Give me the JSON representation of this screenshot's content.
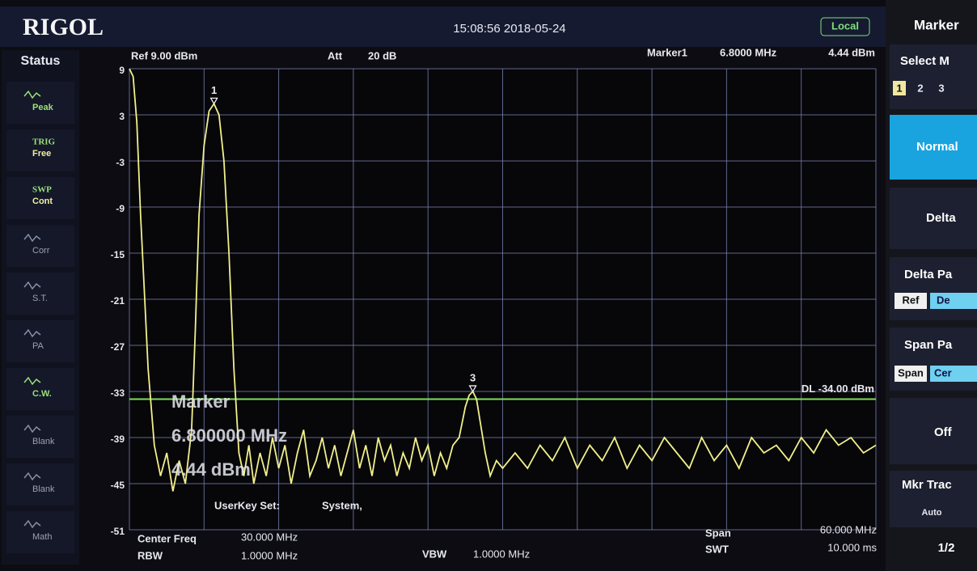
{
  "header": {
    "brand": "RIGOL",
    "datetime": "15:08:56 2018-05-24",
    "mode": "Local"
  },
  "status": {
    "title": "Status",
    "items": [
      {
        "top": "Peak"
      },
      {
        "top": "TRIG",
        "bottom": "Free"
      },
      {
        "top": "SWP",
        "bottom": "Cont"
      },
      {
        "top": "Corr"
      },
      {
        "top": "S.T."
      },
      {
        "top": "PA"
      },
      {
        "top": "C.W."
      },
      {
        "top": "Blank"
      },
      {
        "top": "Blank"
      },
      {
        "top": "Math"
      }
    ]
  },
  "top_info": {
    "ref": "Ref 9.00 dBm",
    "att_label": "Att",
    "att_value": "20 dB",
    "marker_label": "Marker1",
    "marker_freq": "6.8000 MHz",
    "marker_level": "4.44 dBm"
  },
  "overlay": {
    "title": "Marker",
    "freq": "6.800000 MHz",
    "level": "4.44 dBm",
    "userkey_label": "UserKey Set:",
    "userkey_value": "System,"
  },
  "bottom_info": {
    "center_label": "Center Freq",
    "center_value": "30.000 MHz",
    "rbw_label": "RBW",
    "rbw_value": "1.0000 MHz",
    "vbw_label": "VBW",
    "vbw_value": "1.0000 MHz",
    "span_label": "Span",
    "span_value": "60.000 MHz",
    "swt_label": "SWT",
    "swt_value": "10.000 ms"
  },
  "menu": {
    "title": "Marker",
    "select": "Select M",
    "numbers": [
      "1",
      "2",
      "3"
    ],
    "normal": "Normal",
    "delta": "Delta",
    "delta_pair": "Delta Pa",
    "delta_pair_opts": [
      "Ref",
      "De"
    ],
    "span_pair": "Span Pa",
    "span_pair_opts": [
      "Span",
      "Cer"
    ],
    "off": "Off",
    "trace": "Mkr Trac",
    "trace_value": "Auto",
    "page": "1/2"
  },
  "chart_data": {
    "type": "line",
    "x": [
      0,
      0.3,
      0.6,
      0.9,
      1.2,
      1.5,
      2,
      2.5,
      3,
      3.5,
      4,
      4.5,
      5,
      5.3,
      5.6,
      6,
      6.4,
      6.8,
      7.2,
      7.6,
      8,
      8.4,
      8.8,
      9.2,
      9.6,
      10,
      10.5,
      11,
      11.5,
      12,
      12.5,
      13,
      13.5,
      14,
      14.5,
      15,
      15.5,
      16,
      16.5,
      17,
      17.5,
      18,
      18.5,
      19,
      19.5,
      20,
      20.5,
      21,
      21.5,
      22,
      22.5,
      23,
      23.5,
      24,
      24.5,
      25,
      25.5,
      26,
      26.5,
      27,
      27.3,
      27.6,
      27.9,
      28.2,
      28.6,
      29,
      29.5,
      30,
      31,
      32,
      33,
      34,
      35,
      36,
      37,
      38,
      39,
      40,
      41,
      42,
      43,
      44,
      45,
      46,
      47,
      48,
      49,
      50,
      51,
      52,
      53,
      54,
      55,
      56,
      57,
      58,
      59,
      60
    ],
    "series": [
      {
        "color": "#f2f08a",
        "values": [
          9,
          8,
          2,
          -10,
          -20,
          -30,
          -40,
          -44,
          -41,
          -46,
          -42,
          -45,
          -38,
          -25,
          -10,
          -1,
          3.5,
          4.44,
          3,
          -3,
          -15,
          -30,
          -41,
          -44,
          -40,
          -45,
          -41,
          -44,
          -39,
          -43,
          -40,
          -45,
          -41,
          -38,
          -44,
          -42,
          -39,
          -43,
          -40,
          -44,
          -41,
          -38,
          -43,
          -40,
          -44,
          -39,
          -42,
          -40,
          -44,
          -41,
          -43,
          -39,
          -42,
          -40,
          -44,
          -41,
          -43,
          -40,
          -39,
          -35,
          -33.5,
          -33,
          -34,
          -37,
          -41,
          -44,
          -42,
          -43,
          -41,
          -43,
          -40,
          -42,
          -39,
          -43,
          -40,
          -42,
          -39,
          -43,
          -40,
          -42,
          -39,
          -41,
          -43,
          -39,
          -42,
          -40,
          -43,
          -39,
          -41,
          -40,
          -42,
          -39,
          -41,
          -38,
          -40,
          -39,
          -41,
          -40
        ]
      }
    ],
    "xlim": [
      0,
      60
    ],
    "xticks": [
      0,
      6,
      12,
      18,
      24,
      30,
      36,
      42,
      48,
      54,
      60
    ],
    "ylim": [
      -51,
      9
    ],
    "yticks": [
      9,
      3,
      -3,
      -9,
      -15,
      -21,
      -27,
      -33,
      -39,
      -45,
      -51
    ],
    "grid": true,
    "markers": [
      {
        "label": "1",
        "x": 6.8,
        "y": 4.44
      },
      {
        "label": "3",
        "x": 27.6,
        "y": -33
      }
    ],
    "display_line": {
      "label": "DL -34.00 dBm",
      "value": -34,
      "color": "#7fdc5a"
    }
  }
}
